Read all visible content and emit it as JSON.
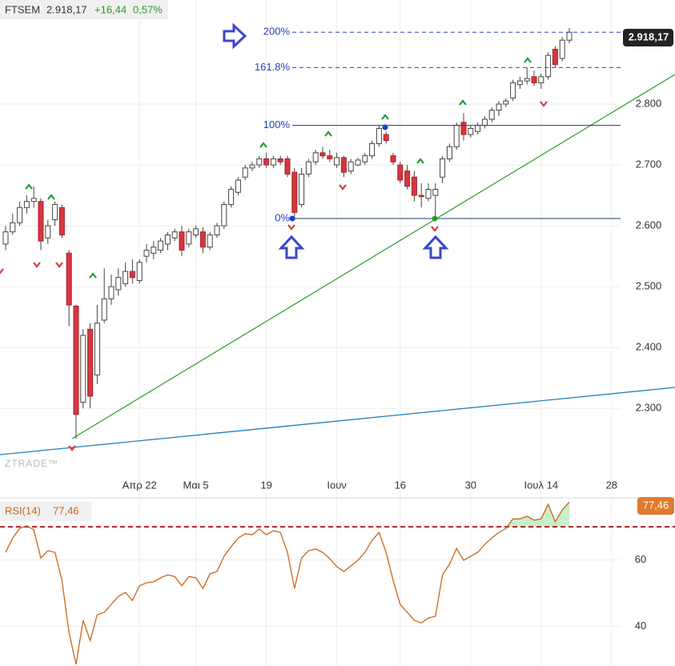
{
  "header": {
    "symbol": "FTSEM",
    "last": "2.918,17",
    "change": "+16,44",
    "change_pct": "0,57%"
  },
  "chart_data": [
    {
      "type": "candlestick",
      "categories": [
        null,
        null,
        null,
        null,
        null,
        null,
        null,
        null,
        null,
        null,
        null,
        null,
        null,
        null,
        null,
        null,
        null,
        null,
        null,
        "Απρ 22",
        null,
        null,
        null,
        null,
        null,
        null,
        null,
        "Μαι 5",
        null,
        null,
        null,
        null,
        null,
        null,
        null,
        null,
        null,
        "19",
        null,
        null,
        null,
        null,
        null,
        null,
        null,
        null,
        null,
        "Ιουν",
        null,
        null,
        null,
        null,
        null,
        null,
        null,
        null,
        "16",
        null,
        null,
        null,
        null,
        null,
        null,
        null,
        null,
        null,
        "30",
        null,
        null,
        null,
        null,
        null,
        null,
        null,
        null,
        null,
        "Ιουλ 14",
        null,
        null,
        null,
        null,
        null,
        null,
        null,
        null,
        null,
        "28"
      ],
      "open": [
        2570,
        2590,
        2605,
        2630,
        2640,
        2640,
        2580,
        2610,
        2630,
        2555,
        2468,
        2310,
        2430,
        2355,
        2445,
        2480,
        2495,
        2505,
        2525,
        2510,
        2550,
        2555,
        2560,
        2570,
        2580,
        2590,
        2570,
        2585,
        2590,
        2565,
        2585,
        2600,
        2635,
        2655,
        2680,
        2695,
        2700,
        2710,
        2700,
        2710,
        2710,
        2688,
        2635,
        2685,
        2705,
        2720,
        2715,
        2700,
        2712,
        2690,
        2700,
        2705,
        2715,
        2735,
        2750,
        2715,
        2700,
        2690,
        2680,
        2650,
        2645,
        2650,
        2680,
        2710,
        2730,
        2770,
        2750,
        2755,
        2765,
        2775,
        2790,
        2800,
        2810,
        2832,
        2838,
        2845,
        2835,
        2845,
        2890,
        2875,
        2905,
        null,
        null,
        null,
        null,
        null,
        null
      ],
      "high": [
        2600,
        2620,
        2640,
        2650,
        2665,
        2645,
        2610,
        2640,
        2635,
        2560,
        2470,
        2430,
        2440,
        2470,
        2530,
        2520,
        2530,
        2540,
        2545,
        2545,
        2570,
        2575,
        2580,
        2590,
        2595,
        2600,
        2595,
        2600,
        2598,
        2590,
        2605,
        2640,
        2665,
        2680,
        2700,
        2705,
        2715,
        2720,
        2715,
        2715,
        2715,
        2695,
        2695,
        2710,
        2725,
        2730,
        2725,
        2720,
        2715,
        2710,
        2712,
        2720,
        2740,
        2765,
        2755,
        2720,
        2705,
        2700,
        2690,
        2670,
        2670,
        2670,
        2715,
        2735,
        2770,
        2785,
        2765,
        2770,
        2780,
        2795,
        2805,
        2810,
        2840,
        2845,
        2860,
        2855,
        2850,
        2885,
        2895,
        2910,
        2925,
        null,
        null,
        null,
        null,
        null,
        null
      ],
      "low": [
        2560,
        2585,
        2600,
        2620,
        2630,
        2560,
        2570,
        2600,
        2580,
        2435,
        2250,
        2300,
        2300,
        2340,
        2440,
        2470,
        2485,
        2500,
        2505,
        2505,
        2540,
        2545,
        2555,
        2560,
        2575,
        2550,
        2565,
        2580,
        2555,
        2560,
        2580,
        2595,
        2630,
        2650,
        2675,
        2690,
        2695,
        2695,
        2695,
        2700,
        2680,
        2612,
        2630,
        2680,
        2700,
        2710,
        2705,
        2695,
        2680,
        2685,
        2698,
        2700,
        2710,
        2730,
        2735,
        2700,
        2670,
        2660,
        2640,
        2630,
        2640,
        2612,
        2670,
        2705,
        2725,
        2740,
        2745,
        2750,
        2760,
        2770,
        2780,
        2795,
        2805,
        2825,
        2832,
        2830,
        2825,
        2840,
        2860,
        2870,
        2900,
        null,
        null,
        null,
        null,
        null,
        null
      ],
      "close": [
        2590,
        2605,
        2630,
        2640,
        2645,
        2575,
        2600,
        2635,
        2585,
        2470,
        2290,
        2420,
        2320,
        2440,
        2480,
        2500,
        2515,
        2525,
        2515,
        2540,
        2560,
        2565,
        2575,
        2585,
        2590,
        2560,
        2590,
        2595,
        2565,
        2585,
        2600,
        2635,
        2660,
        2675,
        2695,
        2700,
        2710,
        2700,
        2710,
        2705,
        2685,
        2622,
        2685,
        2705,
        2720,
        2715,
        2710,
        2712,
        2688,
        2705,
        2708,
        2715,
        2735,
        2760,
        2740,
        2705,
        2675,
        2665,
        2650,
        2648,
        2660,
        2660,
        2710,
        2730,
        2765,
        2750,
        2760,
        2765,
        2775,
        2790,
        2800,
        2805,
        2835,
        2838,
        2842,
        2835,
        2845,
        2880,
        2865,
        2905,
        2918,
        null,
        null,
        null,
        null,
        null,
        null
      ],
      "up_color": "#ffffff",
      "down_color": "#d9363e",
      "ylim": [
        2195,
        2971
      ],
      "yticks": [
        {
          "value": 2300,
          "label": "2.300"
        },
        {
          "value": 2400,
          "label": "2.400"
        },
        {
          "value": 2500,
          "label": "2.500"
        },
        {
          "value": 2600,
          "label": "2.600"
        },
        {
          "value": 2700,
          "label": "2.700"
        },
        {
          "value": 2800,
          "label": "2.800"
        }
      ],
      "grid": true,
      "last_label": "2.918,17",
      "watermark": "ZTRADE™",
      "fib_color": "#2b3fc4",
      "fib_levels": [
        {
          "label": "0%",
          "value": 2612,
          "dashed": false
        },
        {
          "label": "100%",
          "value": 2765,
          "dashed": false
        },
        {
          "label": "161.8%",
          "value": 2860,
          "dashed": true
        },
        {
          "label": "200%",
          "value": 2918,
          "dashed": true
        }
      ]
    },
    {
      "type": "line",
      "title": "RSI(14)",
      "value_label": "77,46",
      "color": "#c8661e",
      "values": [
        62.3,
        66.6,
        69.5,
        70.3,
        69.1,
        60.6,
        62.8,
        62.3,
        53.8,
        38.1,
        28.5,
        41.8,
        35.7,
        43.5,
        44.2,
        46.6,
        49,
        50.2,
        47.8,
        52.2,
        53.1,
        53.4,
        54.6,
        55.5,
        55,
        52.2,
        55,
        54.6,
        51.4,
        55.8,
        56.5,
        61.1,
        64,
        66.6,
        67.9,
        67.6,
        69.3,
        67.6,
        68.8,
        68.3,
        62.3,
        51.4,
        60.6,
        62.8,
        63.3,
        62.3,
        60.4,
        58,
        56.5,
        58.2,
        59.9,
        62.3,
        65.9,
        68.3,
        62.3,
        53.8,
        46.6,
        44.2,
        41.8,
        41,
        42.5,
        43,
        55.5,
        58.7,
        63.5,
        59.9,
        61.1,
        62.3,
        64.7,
        66.6,
        68.3,
        69.5,
        72.4,
        72.4,
        73.2,
        72,
        72.4,
        76.8,
        71.5,
        75.1,
        77.46,
        null,
        null,
        null,
        null,
        null,
        null
      ],
      "ylim": [
        28,
        78
      ],
      "yticks": [
        40,
        60
      ],
      "level": 70,
      "level_color": "#b22222",
      "fill_color": "#c9efc9"
    }
  ]
}
